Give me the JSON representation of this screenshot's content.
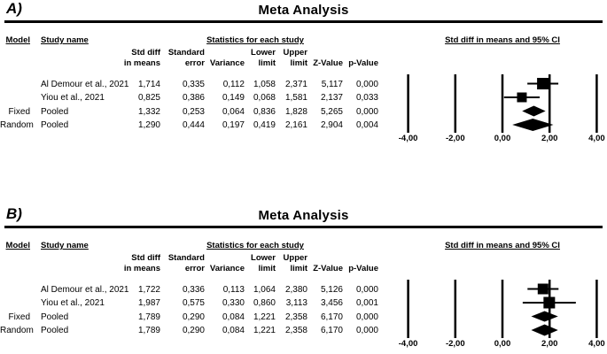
{
  "colors": {
    "ink": "#000000",
    "background": "#ffffff"
  },
  "figure": {
    "panels": [
      {
        "panel_label": "A)",
        "title": "Meta Analysis",
        "table_headers": {
          "model": "Model",
          "study_name": "Study name",
          "stats_group": "Statistics for each study",
          "plot_group": "Std diff in means and 95% CI",
          "columns": [
            {
              "line1": "Std diff",
              "line2": "in means"
            },
            {
              "line1": "Standard",
              "line2": "error"
            },
            {
              "line1": "",
              "line2": "Variance"
            },
            {
              "line1": "Lower",
              "line2": "limit"
            },
            {
              "line1": "Upper",
              "line2": "limit"
            },
            {
              "line1": "",
              "line2": "Z-Value"
            },
            {
              "line1": "",
              "line2": "p-Value"
            }
          ]
        },
        "rows": [
          {
            "model": "",
            "study": "Al Demour et al., 2021",
            "values": [
              "1,714",
              "0,335",
              "0,112",
              "1,058",
              "2,371",
              "5,117",
              "0,000"
            ]
          },
          {
            "model": "",
            "study": "Yiou et al., 2021",
            "values": [
              "0,825",
              "0,386",
              "0,149",
              "0,068",
              "1,581",
              "2,137",
              "0,033"
            ]
          },
          {
            "model": "Fixed",
            "study": "Pooled",
            "values": [
              "1,332",
              "0,253",
              "0,064",
              "0,836",
              "1,828",
              "5,265",
              "0,000"
            ]
          },
          {
            "model": "Random",
            "study": "Pooled",
            "values": [
              "1,290",
              "0,444",
              "0,197",
              "0,419",
              "2,161",
              "2,904",
              "0,004"
            ]
          }
        ]
      },
      {
        "panel_label": "B)",
        "title": "Meta Analysis",
        "table_headers": {
          "model": "Model",
          "study_name": "Study name",
          "stats_group": "Statistics for each study",
          "plot_group": "Std diff in means and 95% CI",
          "columns": [
            {
              "line1": "Std diff",
              "line2": "in means"
            },
            {
              "line1": "Standard",
              "line2": "error"
            },
            {
              "line1": "",
              "line2": "Variance"
            },
            {
              "line1": "Lower",
              "line2": "limit"
            },
            {
              "line1": "Upper",
              "line2": "limit"
            },
            {
              "line1": "",
              "line2": "Z-Value"
            },
            {
              "line1": "",
              "line2": "p-Value"
            }
          ]
        },
        "rows": [
          {
            "model": "",
            "study": "Al Demour et al., 2021",
            "values": [
              "1,722",
              "0,336",
              "0,113",
              "1,064",
              "2,380",
              "5,126",
              "0,000"
            ]
          },
          {
            "model": "",
            "study": "Yiou et al., 2021",
            "values": [
              "1,987",
              "0,575",
              "0,330",
              "0,860",
              "3,113",
              "3,456",
              "0,001"
            ]
          },
          {
            "model": "Fixed",
            "study": "Pooled",
            "values": [
              "1,789",
              "0,290",
              "0,084",
              "1,221",
              "2,358",
              "6,170",
              "0,000"
            ]
          },
          {
            "model": "Random",
            "study": "Pooled",
            "values": [
              "1,789",
              "0,290",
              "0,084",
              "1,221",
              "2,358",
              "6,170",
              "0,000"
            ]
          }
        ]
      }
    ]
  },
  "chart_data": [
    {
      "type": "scatter",
      "subtype": "forest-plot",
      "panel": "A",
      "title": "Meta Analysis",
      "xlabel": "Std diff in means and 95% CI",
      "xlim": [
        -4.0,
        4.0
      ],
      "x_axis": {
        "ticks": [
          -4,
          -2,
          0,
          2,
          4
        ],
        "tick_labels": [
          "-4,00",
          "-2,00",
          "0,00",
          "2,00",
          "4,00"
        ]
      },
      "series": [
        {
          "name": "Al Demour et al., 2021",
          "model": "",
          "marker": "square",
          "std_diff_in_means": 1.714,
          "standard_error": 0.335,
          "variance": 0.112,
          "ci": [
            1.058,
            2.371
          ],
          "z_value": 5.117,
          "p_value": 0.0,
          "marker_size": 13
        },
        {
          "name": "Yiou et al., 2021",
          "model": "",
          "marker": "square",
          "std_diff_in_means": 0.825,
          "standard_error": 0.386,
          "variance": 0.149,
          "ci": [
            0.068,
            1.581
          ],
          "z_value": 2.137,
          "p_value": 0.033,
          "marker_size": 11
        },
        {
          "name": "Pooled",
          "model": "Fixed",
          "marker": "diamond",
          "std_diff_in_means": 1.332,
          "standard_error": 0.253,
          "variance": 0.064,
          "ci": [
            0.836,
            1.828
          ],
          "z_value": 5.265,
          "p_value": 0.0,
          "marker_size": 11
        },
        {
          "name": "Pooled",
          "model": "Random",
          "marker": "diamond",
          "std_diff_in_means": 1.29,
          "standard_error": 0.444,
          "variance": 0.197,
          "ci": [
            0.419,
            2.161
          ],
          "z_value": 2.904,
          "p_value": 0.004,
          "marker_size": 13
        }
      ]
    },
    {
      "type": "scatter",
      "subtype": "forest-plot",
      "panel": "B",
      "title": "Meta Analysis",
      "xlabel": "Std diff in means and 95% CI",
      "xlim": [
        -4.0,
        4.0
      ],
      "x_axis": {
        "ticks": [
          -4,
          -2,
          0,
          2,
          4
        ],
        "tick_labels": [
          "-4,00",
          "-2,00",
          "0,00",
          "2,00",
          "4,00"
        ]
      },
      "series": [
        {
          "name": "Al Demour et al., 2021",
          "model": "",
          "marker": "square",
          "std_diff_in_means": 1.722,
          "standard_error": 0.336,
          "variance": 0.113,
          "ci": [
            1.064,
            2.38
          ],
          "z_value": 5.126,
          "p_value": 0.0,
          "marker_size": 12
        },
        {
          "name": "Yiou et al., 2021",
          "model": "",
          "marker": "square",
          "std_diff_in_means": 1.987,
          "standard_error": 0.575,
          "variance": 0.33,
          "ci": [
            0.86,
            3.113
          ],
          "z_value": 3.456,
          "p_value": 0.001,
          "marker_size": 13
        },
        {
          "name": "Pooled",
          "model": "Fixed",
          "marker": "diamond",
          "std_diff_in_means": 1.789,
          "standard_error": 0.29,
          "variance": 0.084,
          "ci": [
            1.221,
            2.358
          ],
          "z_value": 6.17,
          "p_value": 0.0,
          "marker_size": 11
        },
        {
          "name": "Pooled",
          "model": "Random",
          "marker": "diamond",
          "std_diff_in_means": 1.789,
          "standard_error": 0.29,
          "variance": 0.084,
          "ci": [
            1.221,
            2.358
          ],
          "z_value": 6.17,
          "p_value": 0.0,
          "marker_size": 12
        }
      ]
    }
  ]
}
